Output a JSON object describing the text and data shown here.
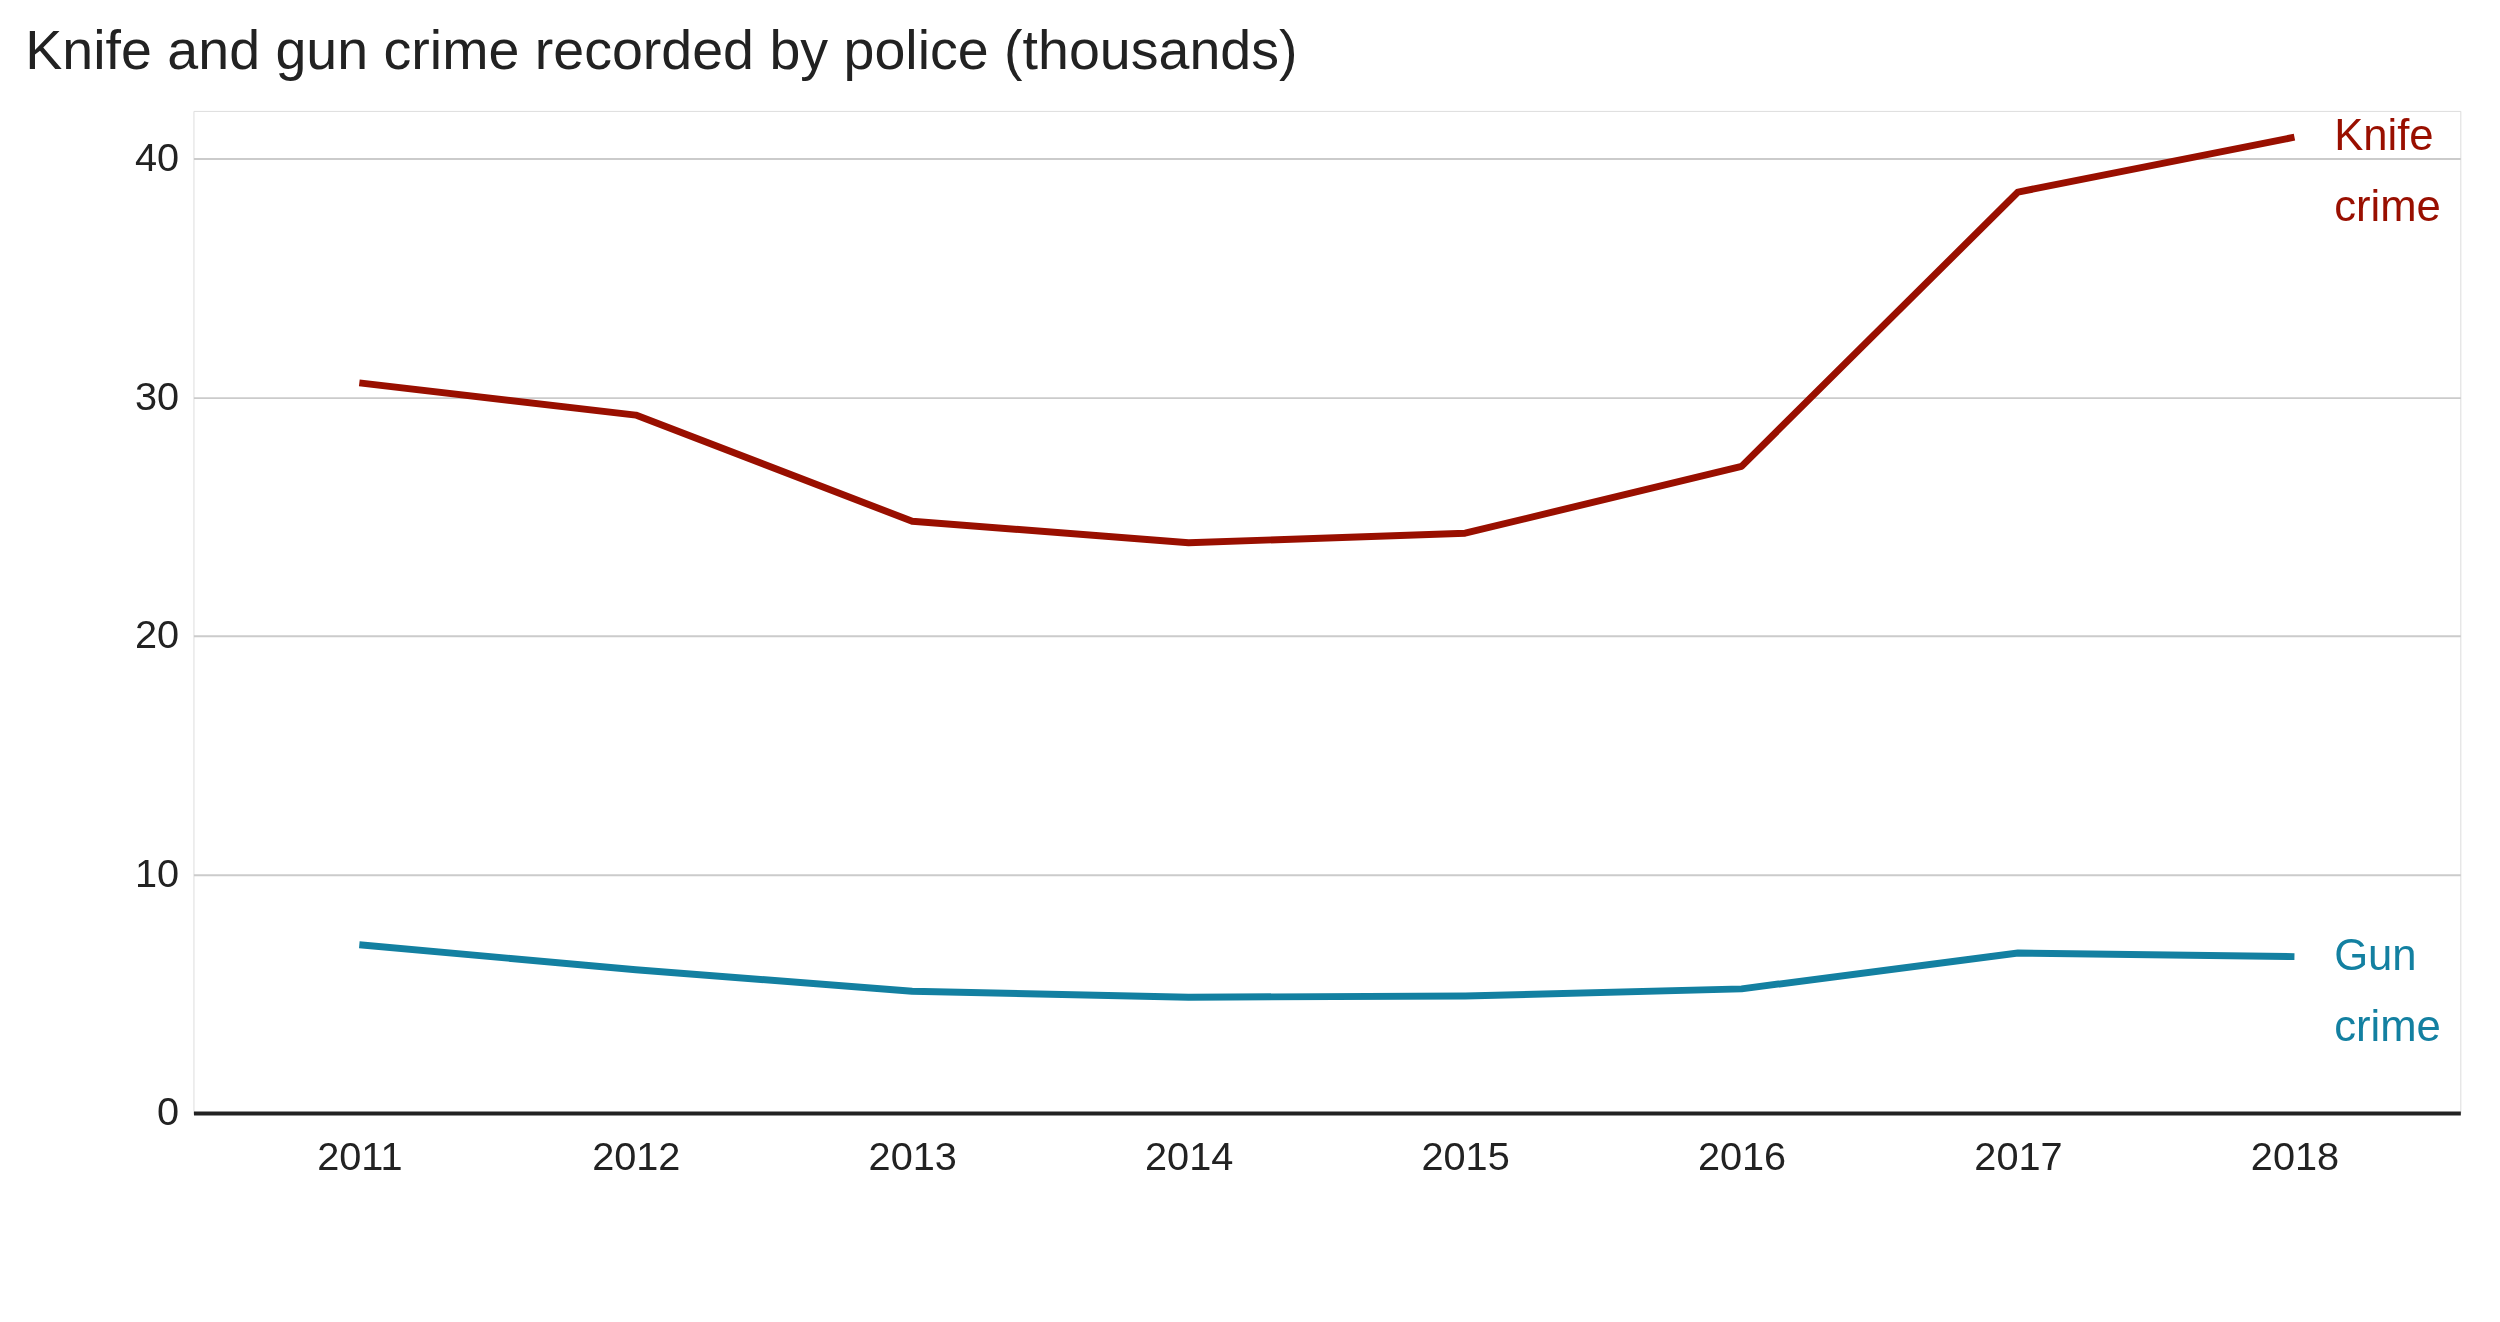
{
  "chart_data": {
    "type": "line",
    "title": "Knife and gun crime recorded by police (thousands)",
    "categories": [
      "2011",
      "2012",
      "2013",
      "2014",
      "2015",
      "2016",
      "2017",
      "2018"
    ],
    "series": [
      {
        "name": "Knife crime",
        "color": "#990f00",
        "values": [
          30.6,
          29.25,
          24.8,
          23.9,
          24.3,
          27.1,
          38.6,
          40.9
        ]
      },
      {
        "name": "Gun crime",
        "color": "#1380a1",
        "values": [
          7.05,
          6.0,
          5.1,
          4.85,
          4.9,
          5.2,
          6.7,
          6.55
        ]
      }
    ],
    "ylim": [
      0,
      42
    ],
    "yticks": [
      0,
      10,
      20,
      30,
      40
    ],
    "grid": "y",
    "legend": false,
    "marker": "none",
    "line_style": "solid"
  }
}
